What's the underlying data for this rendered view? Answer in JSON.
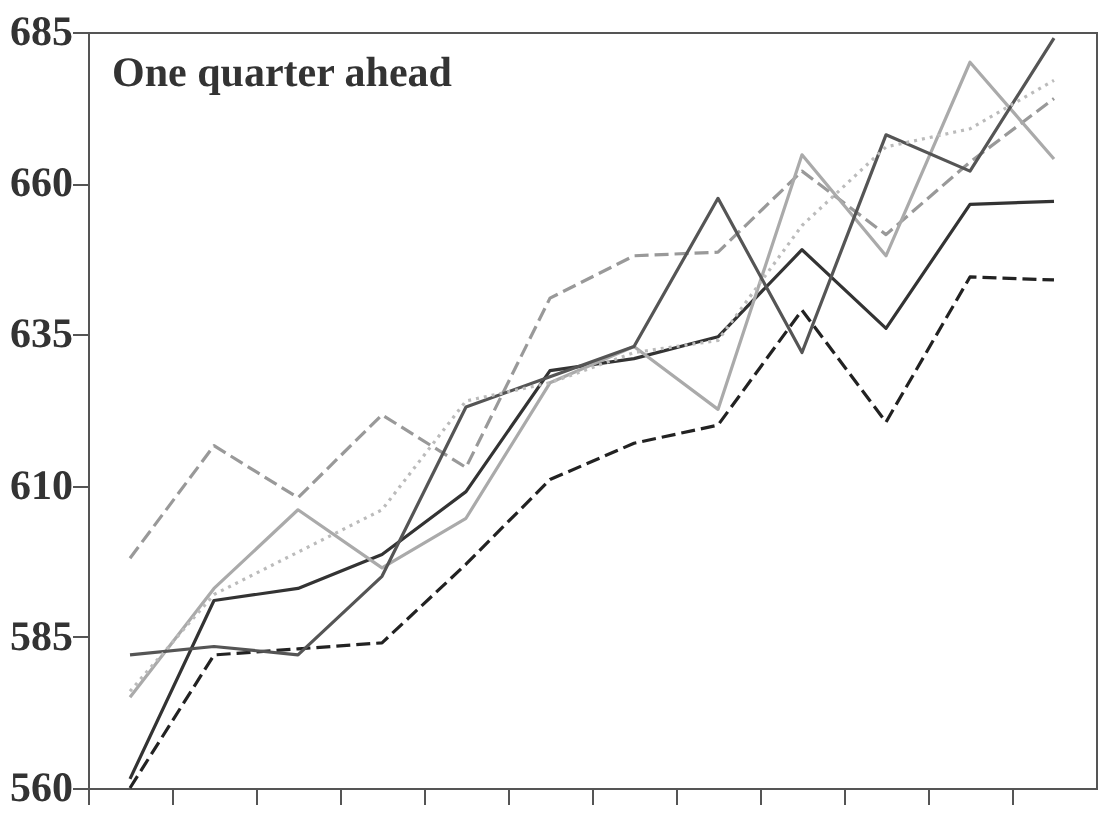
{
  "chart_data": {
    "type": "line",
    "categories": [
      null,
      null,
      null,
      null,
      null,
      null,
      null,
      null,
      null,
      null,
      null,
      null
    ],
    "annotations": [
      "One quarter ahead"
    ],
    "ylim": [
      560,
      685
    ],
    "yticks": [
      560,
      585,
      610,
      635,
      660,
      685
    ],
    "grid": false,
    "tick_labels": "y",
    "series": [
      {
        "color": "#333333",
        "line_style": "solid",
        "values": [
          561.5,
          591,
          593,
          598.6,
          609,
          629,
          631,
          634.6,
          649,
          636,
          656.5,
          657
        ]
      },
      {
        "color": "#222222",
        "line_style": "dashed",
        "values": [
          560,
          582,
          583,
          584,
          597,
          611,
          617,
          620,
          639,
          620.5,
          644.5,
          644
        ]
      },
      {
        "color": "#999999",
        "line_style": "dashed",
        "values": [
          598,
          616.6,
          608,
          621.7,
          613,
          641,
          648,
          648.6,
          662,
          651.5,
          663.5,
          674
        ]
      },
      {
        "color": "#aaaaaa",
        "line_style": "solid",
        "values": [
          575,
          593,
          606,
          596.4,
          604.6,
          627,
          633,
          622.6,
          664.7,
          648,
          680,
          664
        ]
      },
      {
        "color": "#555555",
        "line_style": "solid",
        "values": [
          582,
          583.4,
          582,
          595,
          623,
          628,
          633,
          657.5,
          632,
          668,
          662,
          684
        ]
      },
      {
        "color": "#bbbbbb",
        "line_style": "dotted",
        "values": [
          576,
          592,
          599,
          606,
          624,
          627,
          632,
          634,
          653,
          666,
          669,
          677
        ]
      }
    ]
  }
}
